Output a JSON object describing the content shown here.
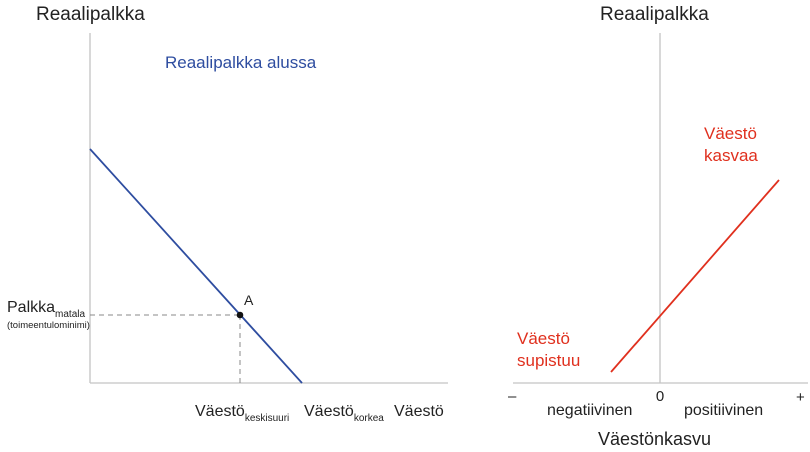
{
  "colors": {
    "text": "#222222",
    "axis": "#c4c4c4",
    "blue_line": "#2e4da0",
    "red_line": "#e0301e",
    "dashed": "#888888",
    "point": "#111111"
  },
  "left_chart": {
    "y_axis_title": "Reaalipalkka",
    "line_label": "Reaalipalkka alussa",
    "point_label": "A",
    "wage_label_main": "Palkka",
    "wage_label_sub": "matala",
    "wage_label_note": "(toimeentulominimi)",
    "x_label_1_main": "Väestö",
    "x_label_1_sub": "keskisuuri",
    "x_label_2_main": "Väestö",
    "x_label_2_sub": "korkea",
    "x_axis_title": "Väestö"
  },
  "right_chart": {
    "y_axis_title": "Reaalipalkka",
    "upper_label_line1": "Väestö",
    "upper_label_line2": "kasvaa",
    "lower_label_line1": "Väestö",
    "lower_label_line2": "supistuu",
    "zero_label": "0",
    "minus_label": "–",
    "plus_label": "+",
    "negative_label": "negatiivinen",
    "positive_label": "positiivinen",
    "x_axis_title": "Väestönkasvu"
  }
}
